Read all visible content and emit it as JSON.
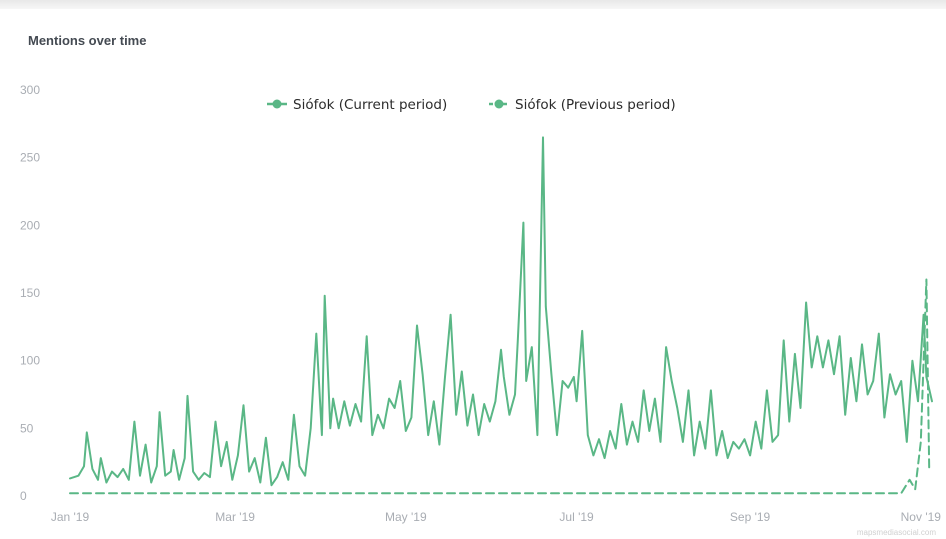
{
  "chart_title": "Mentions over time",
  "credit": "mapsmediasocial.com",
  "colors": {
    "current": "#5ab786",
    "previous": "#5ab786"
  },
  "chart_data": {
    "type": "line",
    "title": "Mentions over time",
    "xlabel": "",
    "ylabel": "",
    "ylim": [
      0,
      300
    ],
    "y_ticks": [
      0,
      50,
      100,
      150,
      200,
      250,
      300
    ],
    "x_ticks": [
      "Jan '19",
      "Mar '19",
      "May '19",
      "Jul '19",
      "Sep '19",
      "Nov '19"
    ],
    "x_range": [
      "2019-01-01",
      "2019-11-05"
    ],
    "legend": {
      "placement": "top-center"
    },
    "grid": false,
    "series": [
      {
        "name": "Siófok (Current period)",
        "style": "solid",
        "points": [
          [
            "2019-01-01",
            13
          ],
          [
            "2019-01-04",
            15
          ],
          [
            "2019-01-06",
            22
          ],
          [
            "2019-01-07",
            47
          ],
          [
            "2019-01-09",
            20
          ],
          [
            "2019-01-11",
            12
          ],
          [
            "2019-01-12",
            28
          ],
          [
            "2019-01-14",
            10
          ],
          [
            "2019-01-16",
            18
          ],
          [
            "2019-01-18",
            14
          ],
          [
            "2019-01-20",
            20
          ],
          [
            "2019-01-22",
            12
          ],
          [
            "2019-01-24",
            55
          ],
          [
            "2019-01-26",
            15
          ],
          [
            "2019-01-28",
            38
          ],
          [
            "2019-01-30",
            10
          ],
          [
            "2019-02-01",
            22
          ],
          [
            "2019-02-02",
            62
          ],
          [
            "2019-02-04",
            15
          ],
          [
            "2019-02-06",
            18
          ],
          [
            "2019-02-07",
            34
          ],
          [
            "2019-02-09",
            12
          ],
          [
            "2019-02-11",
            28
          ],
          [
            "2019-02-12",
            74
          ],
          [
            "2019-02-14",
            18
          ],
          [
            "2019-02-16",
            12
          ],
          [
            "2019-02-18",
            17
          ],
          [
            "2019-02-20",
            14
          ],
          [
            "2019-02-22",
            55
          ],
          [
            "2019-02-24",
            22
          ],
          [
            "2019-02-26",
            40
          ],
          [
            "2019-02-28",
            12
          ],
          [
            "2019-03-02",
            30
          ],
          [
            "2019-03-04",
            67
          ],
          [
            "2019-03-06",
            18
          ],
          [
            "2019-03-08",
            28
          ],
          [
            "2019-03-10",
            10
          ],
          [
            "2019-03-12",
            43
          ],
          [
            "2019-03-14",
            8
          ],
          [
            "2019-03-16",
            14
          ],
          [
            "2019-03-18",
            25
          ],
          [
            "2019-03-20",
            12
          ],
          [
            "2019-03-22",
            60
          ],
          [
            "2019-03-24",
            22
          ],
          [
            "2019-03-26",
            15
          ],
          [
            "2019-03-28",
            50
          ],
          [
            "2019-03-30",
            120
          ],
          [
            "2019-04-01",
            45
          ],
          [
            "2019-04-02",
            148
          ],
          [
            "2019-04-04",
            50
          ],
          [
            "2019-04-05",
            72
          ],
          [
            "2019-04-07",
            50
          ],
          [
            "2019-04-09",
            70
          ],
          [
            "2019-04-11",
            52
          ],
          [
            "2019-04-13",
            68
          ],
          [
            "2019-04-15",
            55
          ],
          [
            "2019-04-17",
            118
          ],
          [
            "2019-04-19",
            45
          ],
          [
            "2019-04-21",
            60
          ],
          [
            "2019-04-23",
            50
          ],
          [
            "2019-04-25",
            72
          ],
          [
            "2019-04-27",
            65
          ],
          [
            "2019-04-29",
            85
          ],
          [
            "2019-05-01",
            48
          ],
          [
            "2019-05-03",
            58
          ],
          [
            "2019-05-05",
            126
          ],
          [
            "2019-05-07",
            90
          ],
          [
            "2019-05-09",
            45
          ],
          [
            "2019-05-11",
            70
          ],
          [
            "2019-05-13",
            38
          ],
          [
            "2019-05-15",
            88
          ],
          [
            "2019-05-17",
            134
          ],
          [
            "2019-05-19",
            60
          ],
          [
            "2019-05-21",
            92
          ],
          [
            "2019-05-23",
            52
          ],
          [
            "2019-05-25",
            75
          ],
          [
            "2019-05-27",
            45
          ],
          [
            "2019-05-29",
            68
          ],
          [
            "2019-05-31",
            55
          ],
          [
            "2019-06-02",
            70
          ],
          [
            "2019-06-04",
            108
          ],
          [
            "2019-06-05",
            88
          ],
          [
            "2019-06-07",
            60
          ],
          [
            "2019-06-09",
            75
          ],
          [
            "2019-06-10",
            115
          ],
          [
            "2019-06-12",
            202
          ],
          [
            "2019-06-13",
            85
          ],
          [
            "2019-06-15",
            110
          ],
          [
            "2019-06-17",
            45
          ],
          [
            "2019-06-19",
            265
          ],
          [
            "2019-06-20",
            140
          ],
          [
            "2019-06-22",
            90
          ],
          [
            "2019-06-24",
            45
          ],
          [
            "2019-06-26",
            85
          ],
          [
            "2019-06-28",
            80
          ],
          [
            "2019-06-30",
            88
          ],
          [
            "2019-07-01",
            70
          ],
          [
            "2019-07-03",
            122
          ],
          [
            "2019-07-05",
            45
          ],
          [
            "2019-07-07",
            30
          ],
          [
            "2019-07-09",
            42
          ],
          [
            "2019-07-11",
            28
          ],
          [
            "2019-07-13",
            48
          ],
          [
            "2019-07-15",
            35
          ],
          [
            "2019-07-17",
            68
          ],
          [
            "2019-07-19",
            38
          ],
          [
            "2019-07-21",
            55
          ],
          [
            "2019-07-23",
            40
          ],
          [
            "2019-07-25",
            78
          ],
          [
            "2019-07-27",
            48
          ],
          [
            "2019-07-29",
            72
          ],
          [
            "2019-07-31",
            40
          ],
          [
            "2019-08-02",
            110
          ],
          [
            "2019-08-04",
            85
          ],
          [
            "2019-08-06",
            65
          ],
          [
            "2019-08-08",
            40
          ],
          [
            "2019-08-10",
            78
          ],
          [
            "2019-08-12",
            30
          ],
          [
            "2019-08-14",
            55
          ],
          [
            "2019-08-16",
            35
          ],
          [
            "2019-08-18",
            78
          ],
          [
            "2019-08-20",
            30
          ],
          [
            "2019-08-22",
            48
          ],
          [
            "2019-08-24",
            28
          ],
          [
            "2019-08-26",
            40
          ],
          [
            "2019-08-28",
            35
          ],
          [
            "2019-08-30",
            42
          ],
          [
            "2019-09-01",
            30
          ],
          [
            "2019-09-03",
            55
          ],
          [
            "2019-09-05",
            35
          ],
          [
            "2019-09-07",
            78
          ],
          [
            "2019-09-09",
            40
          ],
          [
            "2019-09-11",
            45
          ],
          [
            "2019-09-13",
            115
          ],
          [
            "2019-09-15",
            55
          ],
          [
            "2019-09-17",
            105
          ],
          [
            "2019-09-19",
            65
          ],
          [
            "2019-09-21",
            143
          ],
          [
            "2019-09-23",
            95
          ],
          [
            "2019-09-25",
            118
          ],
          [
            "2019-09-27",
            95
          ],
          [
            "2019-09-29",
            115
          ],
          [
            "2019-10-01",
            90
          ],
          [
            "2019-10-03",
            118
          ],
          [
            "2019-10-05",
            60
          ],
          [
            "2019-10-07",
            102
          ],
          [
            "2019-10-09",
            70
          ],
          [
            "2019-10-11",
            112
          ],
          [
            "2019-10-13",
            75
          ],
          [
            "2019-10-15",
            85
          ],
          [
            "2019-10-17",
            120
          ],
          [
            "2019-10-19",
            58
          ],
          [
            "2019-10-21",
            90
          ],
          [
            "2019-10-23",
            75
          ],
          [
            "2019-10-25",
            85
          ],
          [
            "2019-10-27",
            40
          ],
          [
            "2019-10-29",
            100
          ],
          [
            "2019-10-31",
            70
          ],
          [
            "2019-11-02",
            134
          ],
          [
            "2019-11-03",
            88
          ],
          [
            "2019-11-05",
            70
          ]
        ]
      },
      {
        "name": "Siófok (Previous period)",
        "style": "dashed",
        "points": [
          [
            "2019-01-01",
            2
          ],
          [
            "2019-02-01",
            2
          ],
          [
            "2019-03-01",
            2
          ],
          [
            "2019-04-01",
            2
          ],
          [
            "2019-05-01",
            2
          ],
          [
            "2019-06-01",
            2
          ],
          [
            "2019-07-01",
            2
          ],
          [
            "2019-08-01",
            2
          ],
          [
            "2019-09-01",
            2
          ],
          [
            "2019-10-01",
            2
          ],
          [
            "2019-10-25",
            2
          ],
          [
            "2019-10-28",
            12
          ],
          [
            "2019-10-30",
            5
          ],
          [
            "2019-11-01",
            40
          ],
          [
            "2019-11-03",
            160
          ],
          [
            "2019-11-04",
            20
          ]
        ]
      }
    ]
  }
}
